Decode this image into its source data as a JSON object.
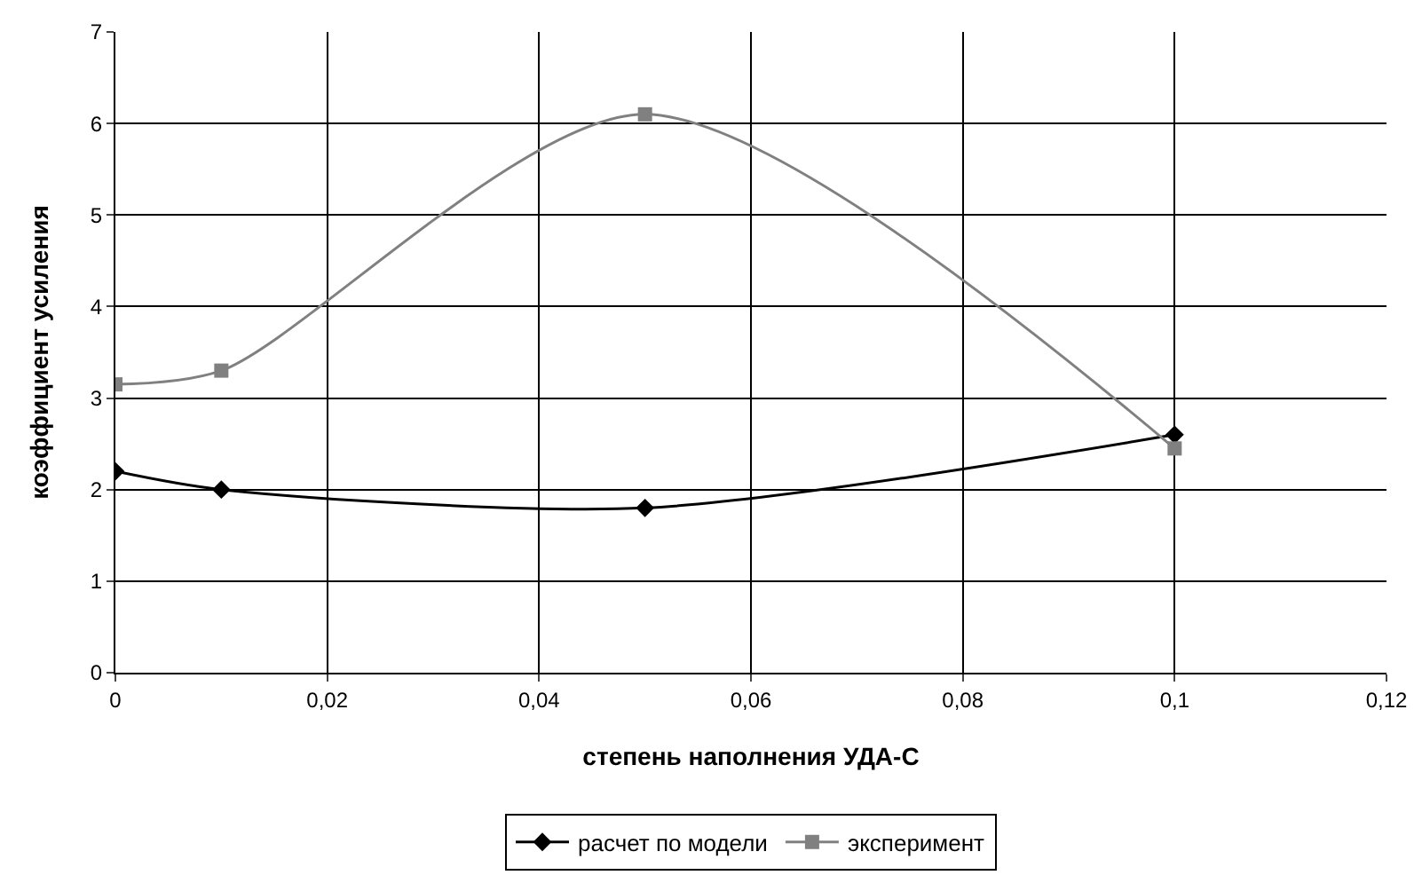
{
  "chart_data": {
    "type": "line",
    "xlabel": "степень наполнения УДА-С",
    "ylabel": "коэффициент усиления",
    "x": [
      0,
      0.01,
      0.05,
      0.1
    ],
    "series": [
      {
        "name": "расчет по модели",
        "color": "#000000",
        "marker": "diamond",
        "values": [
          2.2,
          2.0,
          1.8,
          2.6
        ]
      },
      {
        "name": "эксперимент",
        "color": "#808080",
        "marker": "square",
        "values": [
          3.15,
          3.3,
          6.1,
          2.45
        ]
      }
    ],
    "xlim": [
      0,
      0.12
    ],
    "xticks": [
      0,
      {
        "value": 0.02,
        "label": "0,02"
      },
      {
        "value": 0.04,
        "label": "0,04"
      },
      {
        "value": 0.06,
        "label": "0,06"
      },
      {
        "value": 0.08,
        "label": "0,08"
      },
      {
        "value": 0.1,
        "label": "0,1"
      },
      {
        "value": 0.12,
        "label": "0,12"
      }
    ],
    "ylim": [
      0,
      7
    ],
    "yticks": [
      0,
      1,
      2,
      3,
      4,
      5,
      6,
      7
    ],
    "grid": true,
    "legend": "bottom",
    "line_style": "solid"
  }
}
